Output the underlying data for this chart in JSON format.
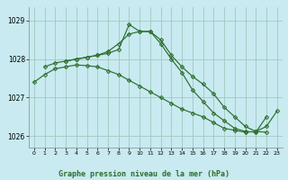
{
  "title": "Graphe pression niveau de la mer (hPa)",
  "background_color": "#c8eaf0",
  "plot_bg_color": "#c8eaf0",
  "grid_color": "#a0c8c0",
  "line_color": "#2d6e2d",
  "marker_color": "#2d6e2d",
  "xlim": [
    -0.5,
    23.5
  ],
  "ylim": [
    1025.7,
    1029.35
  ],
  "yticks": [
    1026,
    1027,
    1028,
    1029
  ],
  "xticks": [
    0,
    1,
    2,
    3,
    4,
    5,
    6,
    7,
    8,
    9,
    10,
    11,
    12,
    13,
    14,
    15,
    16,
    17,
    18,
    19,
    20,
    21,
    22,
    23
  ],
  "line1_x": [
    0,
    1,
    2,
    3,
    4,
    5,
    6,
    7,
    8,
    9,
    10,
    11,
    12,
    13,
    14,
    15,
    16,
    17,
    18,
    19,
    20,
    21,
    22,
    23
  ],
  "line1_y": [
    1027.4,
    1027.6,
    1027.75,
    1027.8,
    1027.85,
    1027.83,
    1027.8,
    1027.7,
    1027.6,
    1027.45,
    1027.3,
    1027.15,
    1027.0,
    1026.85,
    1026.7,
    1026.6,
    1026.5,
    1026.35,
    1026.2,
    1026.15,
    1026.1,
    1026.12,
    1026.25,
    1026.65
  ],
  "line2_x": [
    1,
    2,
    3,
    4,
    5,
    6,
    7,
    8,
    9,
    10,
    11,
    12,
    13,
    14,
    15,
    16,
    17,
    18,
    19,
    20,
    21,
    22
  ],
  "line2_y": [
    1027.8,
    1027.9,
    1027.95,
    1028.0,
    1028.05,
    1028.1,
    1028.2,
    1028.4,
    1028.65,
    1028.72,
    1028.72,
    1028.5,
    1028.1,
    1027.8,
    1027.55,
    1027.35,
    1027.1,
    1026.75,
    1026.5,
    1026.25,
    1026.12,
    1026.1
  ],
  "line3_x": [
    3,
    4,
    5,
    6,
    7,
    8,
    9,
    10,
    11,
    12,
    13,
    14,
    15,
    16,
    17,
    18,
    19,
    20,
    21,
    22
  ],
  "line3_y": [
    1027.95,
    1028.0,
    1028.05,
    1028.1,
    1028.15,
    1028.25,
    1028.9,
    1028.72,
    1028.72,
    1028.4,
    1028.0,
    1027.65,
    1027.2,
    1026.9,
    1026.6,
    1026.4,
    1026.2,
    1026.12,
    1026.1,
    1026.5
  ]
}
